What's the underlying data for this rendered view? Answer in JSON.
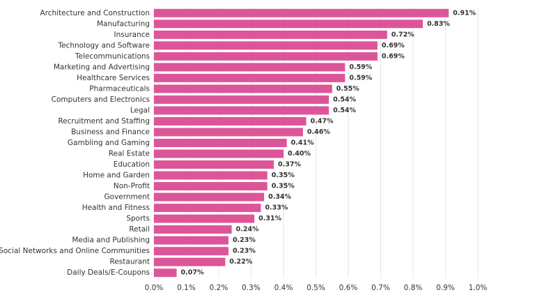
{
  "chart_data": {
    "type": "hbar",
    "categories": [
      "Architecture and Construction",
      "Manufacturing",
      "Insurance",
      "Technology and Software",
      "Telecommunications",
      "Marketing and Advertising",
      "Healthcare Services",
      "Pharmaceuticals",
      "Computers and Electronics",
      "Legal",
      "Recruitment and Staffing",
      "Business and Finance",
      "Gambling and Gaming",
      "Real Estate",
      "Education",
      "Home and Garden",
      "Non-Profit",
      "Government",
      "Health and Fitness",
      "Sports",
      "Retail",
      "Media and Publishing",
      "Social Networks and Online Communities",
      "Restaurant",
      "Daily Deals/E-Coupons"
    ],
    "values": [
      0.91,
      0.83,
      0.72,
      0.69,
      0.69,
      0.59,
      0.59,
      0.55,
      0.54,
      0.54,
      0.47,
      0.46,
      0.41,
      0.4,
      0.37,
      0.35,
      0.35,
      0.34,
      0.33,
      0.31,
      0.24,
      0.23,
      0.23,
      0.22,
      0.07
    ],
    "value_labels": [
      "0.91%",
      "0.83%",
      "0.72%",
      "0.69%",
      "0.69%",
      "0.59%",
      "0.59%",
      "0.55%",
      "0.54%",
      "0.54%",
      "0.47%",
      "0.46%",
      "0.41%",
      "0.40%",
      "0.37%",
      "0.35%",
      "0.35%",
      "0.34%",
      "0.33%",
      "0.31%",
      "0.24%",
      "0.23%",
      "0.23%",
      "0.22%",
      "0.07%"
    ],
    "color": "#dd5599",
    "xlim": [
      0,
      1.0
    ],
    "xticks": [
      {
        "value": 0,
        "label": "0.0%"
      },
      {
        "value": 0.1,
        "label": "0.1%"
      },
      {
        "value": 0.2,
        "label": "0.2%"
      },
      {
        "value": 0.3,
        "label": "0.3%"
      },
      {
        "value": 0.4,
        "label": "0.4%"
      },
      {
        "value": 0.5,
        "label": "0.5%"
      },
      {
        "value": 0.6,
        "label": "0.6%"
      },
      {
        "value": 0.7,
        "label": "0.7%"
      },
      {
        "value": 0.8,
        "label": "0.8%"
      },
      {
        "value": 0.9,
        "label": "0.9%"
      },
      {
        "value": 1.0,
        "label": "1.0%"
      }
    ],
    "grid": true
  }
}
